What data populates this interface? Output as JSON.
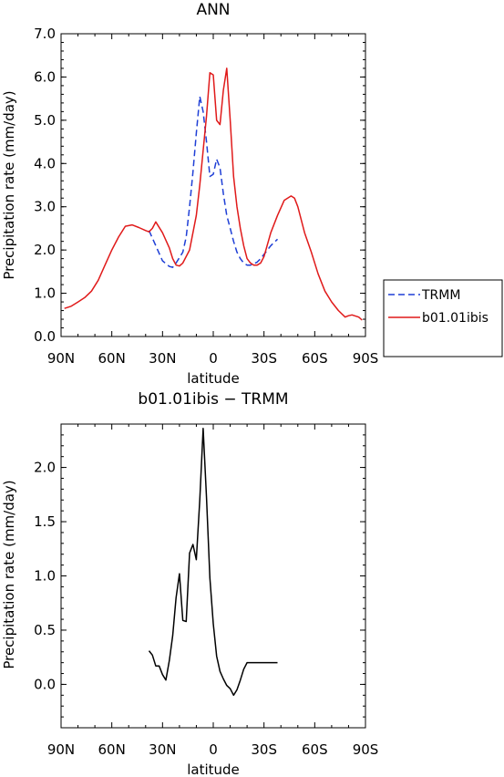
{
  "chart_data": [
    {
      "type": "line",
      "title": "ANN",
      "xlabel": "latitude",
      "ylabel": "Precipitation rate (mm/day)",
      "xlim": [
        90,
        -90
      ],
      "ylim": [
        0,
        7
      ],
      "x_ticks": [
        90,
        60,
        30,
        0,
        -30,
        -60,
        -90
      ],
      "x_tick_labels": [
        "90N",
        "60N",
        "30N",
        "0",
        "30S",
        "60S",
        "90S"
      ],
      "y_ticks": [
        0,
        1,
        2,
        3,
        4,
        5,
        6,
        7
      ],
      "y_tick_labels": [
        "0.0",
        "1.0",
        "2.0",
        "3.0",
        "4.0",
        "5.0",
        "6.0",
        "7.0"
      ],
      "legend_position": "right",
      "series": [
        {
          "name": "TRMM",
          "color": "#1f3fd6",
          "style": "dashed",
          "x": [
            38,
            34,
            30,
            26,
            24,
            22,
            18,
            16,
            14,
            12,
            10,
            8,
            6,
            4,
            2,
            0,
            -2,
            -4,
            -6,
            -8,
            -10,
            -12,
            -14,
            -16,
            -18,
            -20,
            -22,
            -24,
            -26,
            -28,
            -30,
            -34,
            -38
          ],
          "y": [
            2.45,
            2.1,
            1.75,
            1.62,
            1.6,
            1.7,
            1.95,
            2.3,
            3.0,
            3.8,
            4.7,
            5.55,
            5.2,
            4.5,
            3.7,
            3.75,
            4.1,
            3.9,
            3.3,
            2.8,
            2.5,
            2.2,
            1.95,
            1.8,
            1.7,
            1.65,
            1.65,
            1.68,
            1.72,
            1.8,
            1.9,
            2.1,
            2.25
          ]
        },
        {
          "name": "b01.01ibis",
          "color": "#e01a1a",
          "style": "solid",
          "x": [
            88,
            84,
            80,
            76,
            72,
            68,
            64,
            60,
            56,
            52,
            48,
            44,
            40,
            38,
            36,
            34,
            30,
            26,
            24,
            22,
            20,
            18,
            14,
            12,
            10,
            8,
            6,
            4,
            2,
            0,
            -2,
            -4,
            -6,
            -8,
            -10,
            -12,
            -14,
            -16,
            -18,
            -20,
            -22,
            -24,
            -26,
            -28,
            -30,
            -34,
            -38,
            -42,
            -46,
            -48,
            -50,
            -54,
            -58,
            -62,
            -66,
            -70,
            -74,
            -78,
            -80,
            -82,
            -86,
            -88
          ],
          "y": [
            0.65,
            0.7,
            0.8,
            0.9,
            1.05,
            1.3,
            1.65,
            2.0,
            2.3,
            2.55,
            2.58,
            2.52,
            2.45,
            2.42,
            2.5,
            2.65,
            2.4,
            2.05,
            1.8,
            1.65,
            1.63,
            1.7,
            2.0,
            2.4,
            2.8,
            3.5,
            4.3,
            5.1,
            6.1,
            6.05,
            5.0,
            4.9,
            5.7,
            6.2,
            5.0,
            3.7,
            3.0,
            2.5,
            2.1,
            1.8,
            1.7,
            1.65,
            1.65,
            1.7,
            1.85,
            2.4,
            2.8,
            3.15,
            3.25,
            3.2,
            3.0,
            2.4,
            1.95,
            1.45,
            1.05,
            0.8,
            0.6,
            0.45,
            0.48,
            0.5,
            0.45,
            0.38
          ]
        }
      ]
    },
    {
      "type": "line",
      "title": "b01.01ibis − TRMM",
      "xlabel": "latitude",
      "ylabel": "Precipitation rate (mm/day)",
      "xlim": [
        90,
        -90
      ],
      "ylim": [
        -0.4,
        2.4
      ],
      "x_ticks": [
        90,
        60,
        30,
        0,
        -30,
        -60,
        -90
      ],
      "x_tick_labels": [
        "90N",
        "60N",
        "30N",
        "0",
        "30S",
        "60S",
        "90S"
      ],
      "y_ticks": [
        0.0,
        0.5,
        1.0,
        1.5,
        2.0
      ],
      "y_tick_labels": [
        "0.0",
        "0.5",
        "1.0",
        "1.5",
        "2.0"
      ],
      "series": [
        {
          "color": "#000000",
          "style": "solid",
          "x": [
            38,
            36,
            34,
            32,
            30,
            28,
            26,
            24,
            22,
            20,
            18,
            16,
            14,
            12,
            10,
            8,
            6,
            4,
            2,
            0,
            -2,
            -4,
            -6,
            -8,
            -10,
            -12,
            -14,
            -16,
            -18,
            -20,
            -22,
            -24,
            -26,
            -28,
            -30,
            -32,
            -34,
            -36,
            -38
          ],
          "y": [
            0.31,
            0.27,
            0.17,
            0.17,
            0.09,
            0.04,
            0.22,
            0.45,
            0.8,
            1.02,
            0.59,
            0.58,
            1.21,
            1.29,
            1.15,
            1.7,
            2.36,
            1.72,
            0.98,
            0.56,
            0.26,
            0.12,
            0.05,
            -0.01,
            -0.04,
            -0.1,
            -0.05,
            0.04,
            0.14,
            0.2,
            0.2,
            0.2,
            0.2,
            0.2,
            0.2,
            0.2,
            0.2,
            0.2,
            0.2
          ]
        }
      ]
    }
  ]
}
